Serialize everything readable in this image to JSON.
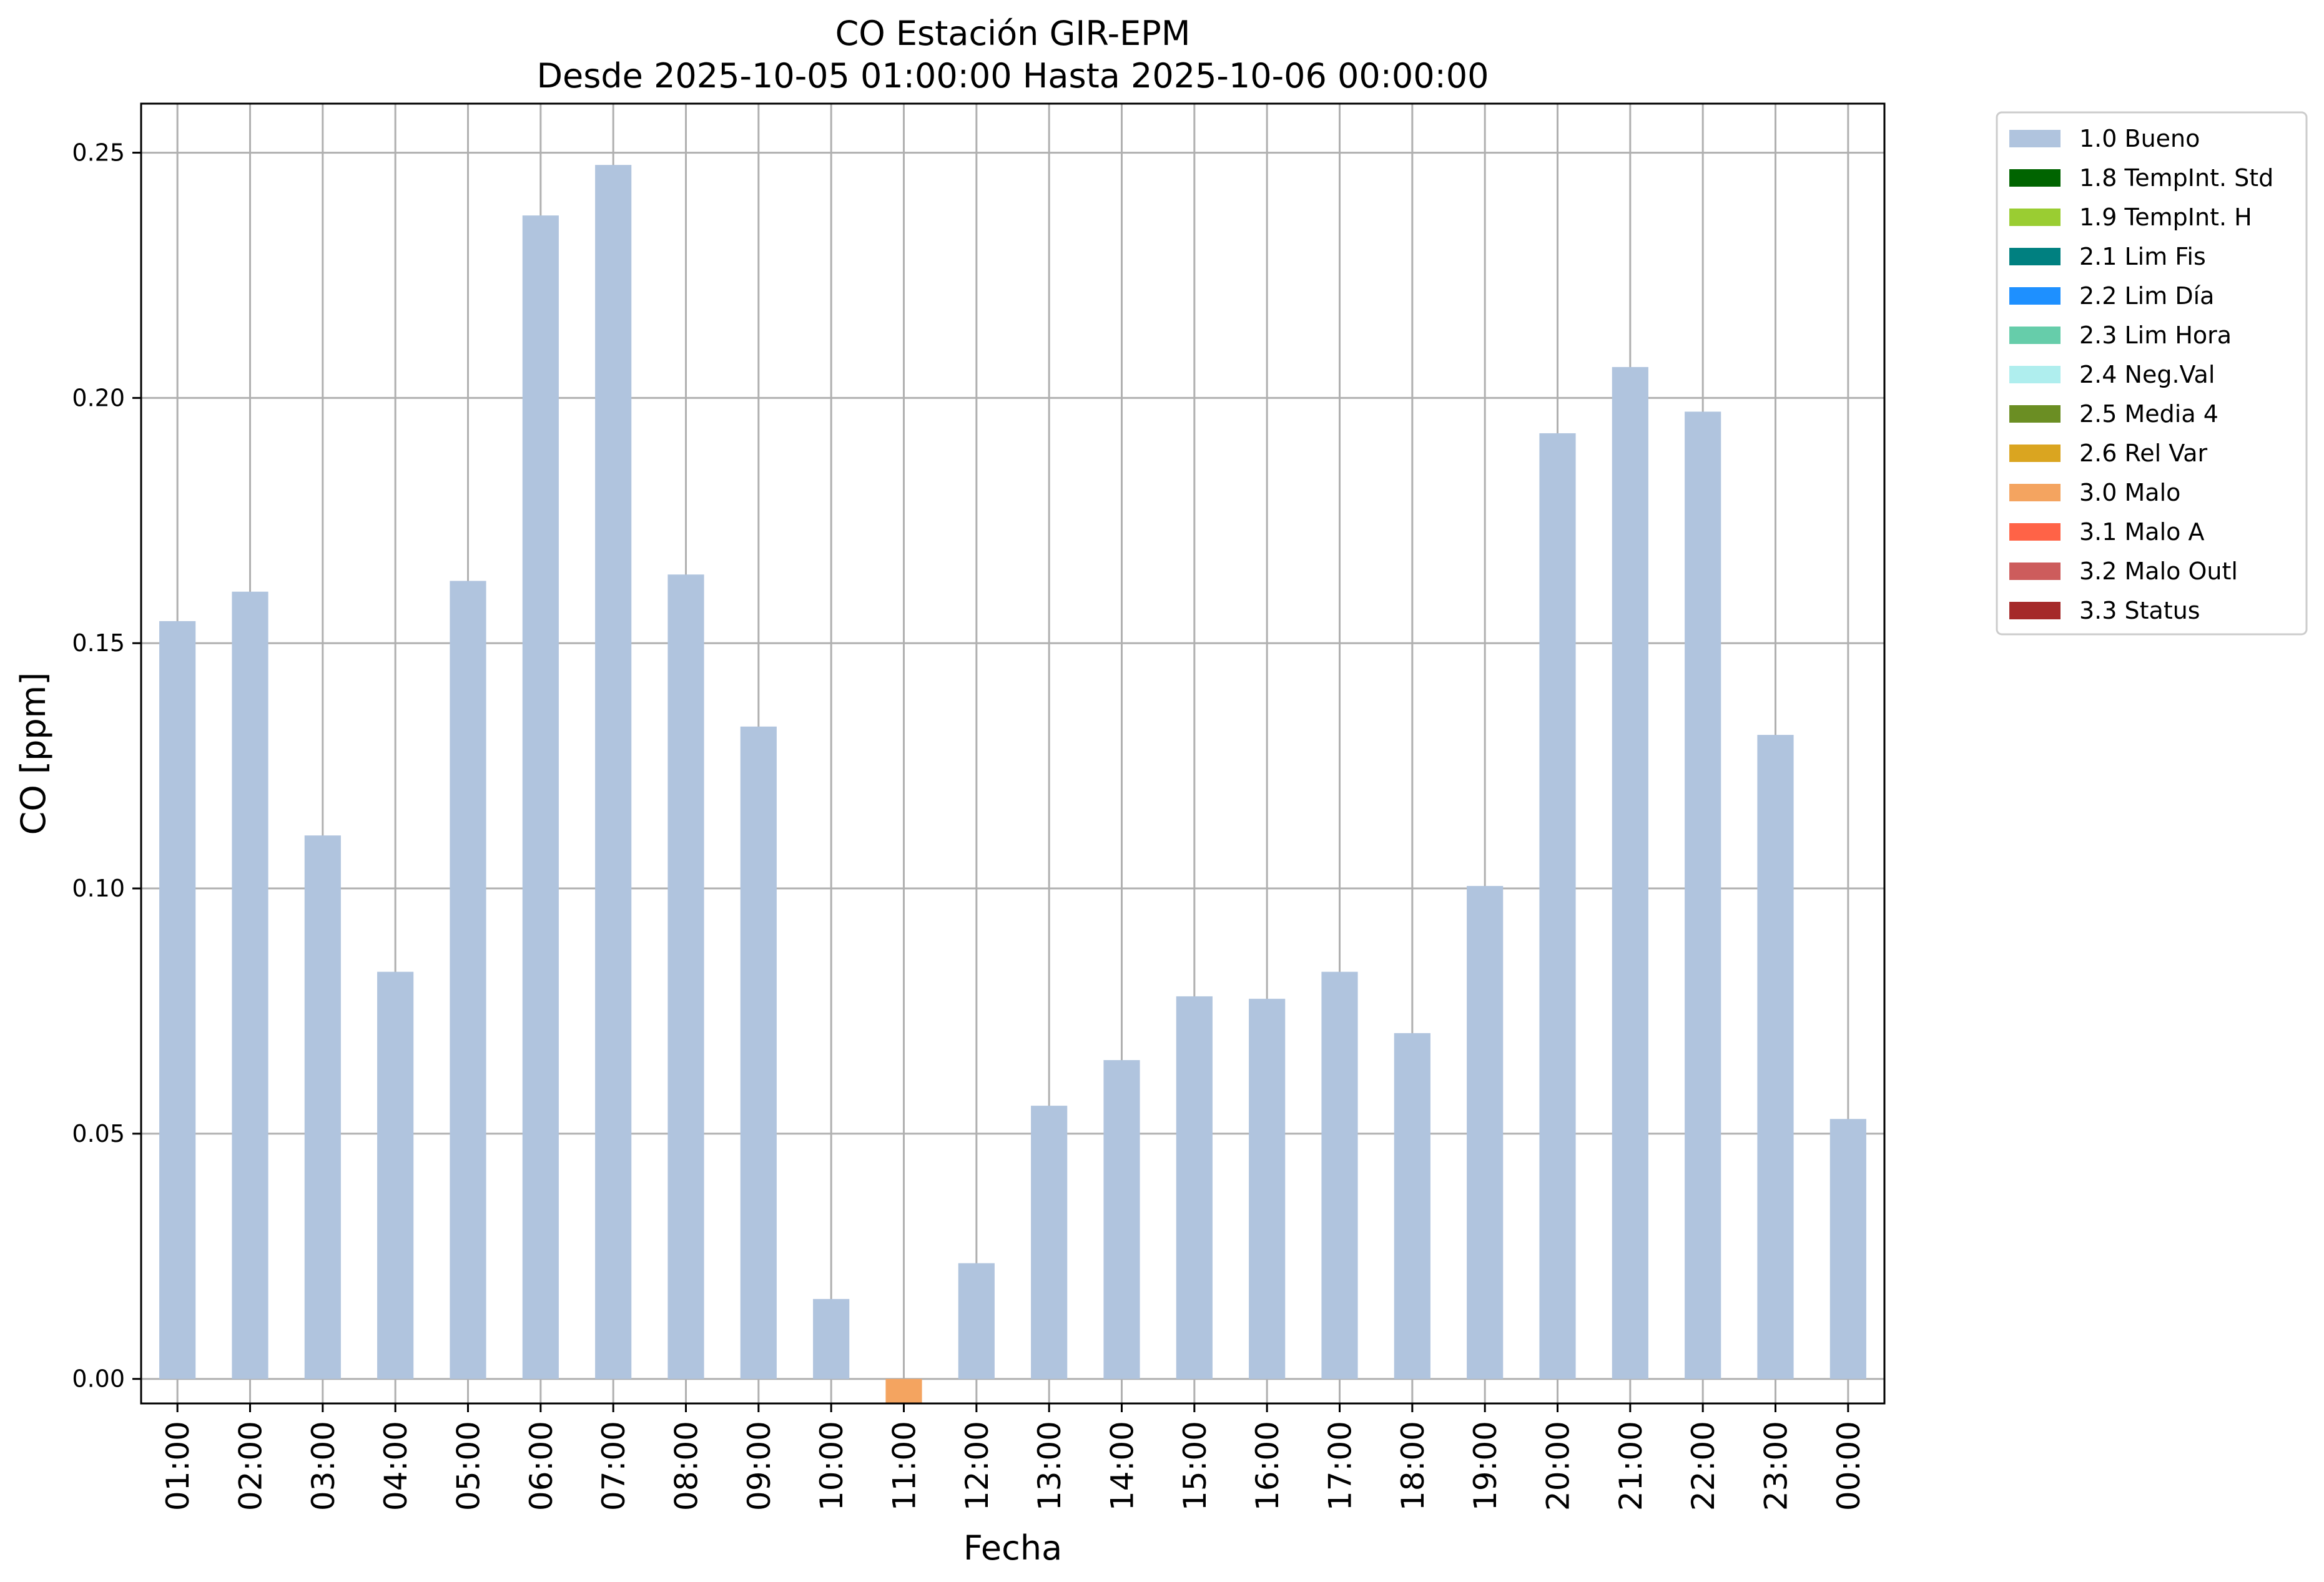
{
  "chart_data": {
    "type": "bar",
    "title": "CO Estación GIR-EPM",
    "subtitle": "Desde 2025-10-05 01:00:00 Hasta 2025-10-06 00:00:00",
    "xlabel": "Fecha",
    "ylabel": "CO [ppm]",
    "ylim": [
      -0.005,
      0.26
    ],
    "yticks": [
      0.0,
      0.05,
      0.1,
      0.15,
      0.2,
      0.25
    ],
    "ytick_labels": [
      "0.00",
      "0.05",
      "0.10",
      "0.15",
      "0.20",
      "0.25"
    ],
    "grid": true,
    "legend_position": "outside-top-right",
    "categories": [
      "01:00",
      "02:00",
      "03:00",
      "04:00",
      "05:00",
      "06:00",
      "07:00",
      "08:00",
      "09:00",
      "10:00",
      "11:00",
      "12:00",
      "13:00",
      "14:00",
      "15:00",
      "16:00",
      "17:00",
      "18:00",
      "19:00",
      "20:00",
      "21:00",
      "22:00",
      "23:00",
      "00:00"
    ],
    "values": [
      0.1545,
      0.1605,
      0.1108,
      0.083,
      0.1627,
      0.2372,
      0.2475,
      0.164,
      0.133,
      0.0163,
      -0.005,
      0.0236,
      0.0557,
      0.065,
      0.078,
      0.0775,
      0.083,
      0.0705,
      0.1005,
      0.1928,
      0.2063,
      0.1972,
      0.1313,
      0.053
    ],
    "flags": [
      "1.0 Bueno",
      "1.0 Bueno",
      "1.0 Bueno",
      "1.0 Bueno",
      "1.0 Bueno",
      "1.0 Bueno",
      "1.0 Bueno",
      "1.0 Bueno",
      "1.0 Bueno",
      "1.0 Bueno",
      "3.0 Malo",
      "1.0 Bueno",
      "1.0 Bueno",
      "1.0 Bueno",
      "1.0 Bueno",
      "1.0 Bueno",
      "1.0 Bueno",
      "1.0 Bueno",
      "1.0 Bueno",
      "1.0 Bueno",
      "1.0 Bueno",
      "1.0 Bueno",
      "1.0 Bueno",
      "1.0 Bueno"
    ],
    "legend": [
      {
        "label": "1.0 Bueno",
        "color": "#b0c4de"
      },
      {
        "label": "1.8 TempInt. Std",
        "color": "#006400"
      },
      {
        "label": "1.9 TempInt. H",
        "color": "#9acd32"
      },
      {
        "label": "2.1 Lim Fis",
        "color": "#008080"
      },
      {
        "label": "2.2 Lim Día",
        "color": "#1e90ff"
      },
      {
        "label": "2.3 Lim Hora",
        "color": "#66cdaa"
      },
      {
        "label": "2.4 Neg.Val",
        "color": "#afeeee"
      },
      {
        "label": "2.5 Media 4",
        "color": "#6b8e23"
      },
      {
        "label": "2.6 Rel Var",
        "color": "#daa520"
      },
      {
        "label": "3.0 Malo",
        "color": "#f4a460"
      },
      {
        "label": "3.1 Malo A",
        "color": "#ff6347"
      },
      {
        "label": "3.2 Malo Outl",
        "color": "#cd5c5c"
      },
      {
        "label": "3.3 Status",
        "color": "#a52a2a"
      }
    ]
  }
}
